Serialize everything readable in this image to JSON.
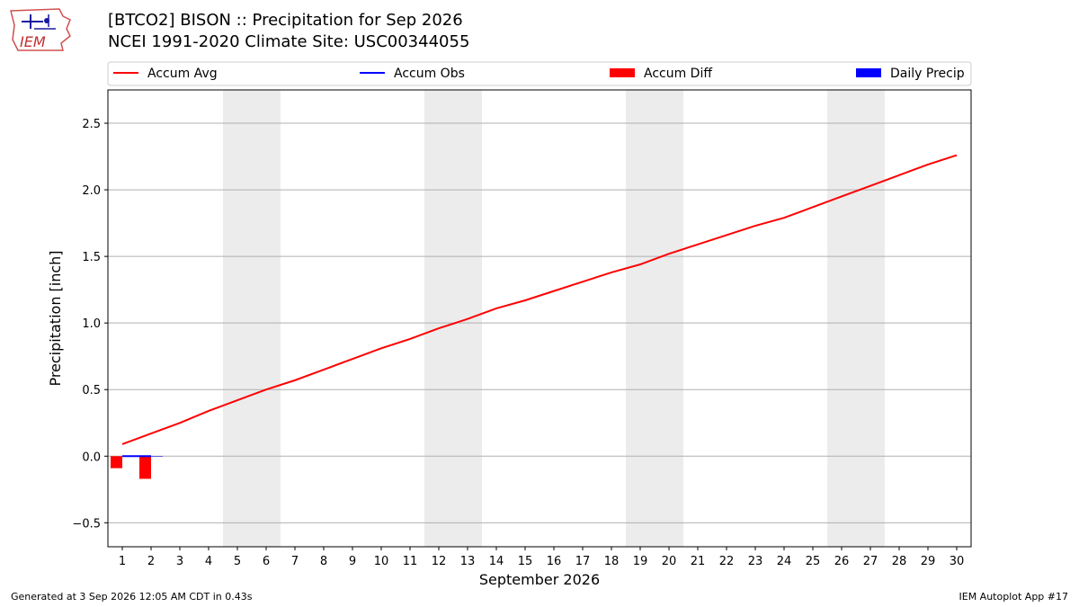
{
  "header": {
    "title_line1": "[BTCO2] BISON :: Precipitation for Sep 2026",
    "title_line2": "NCEI 1991-2020 Climate Site: USC00344055",
    "logo_text": "IEM"
  },
  "footer": {
    "generated": "Generated at 3 Sep 2026 12:05 AM CDT in 0.43s",
    "app": "IEM Autoplot App #17"
  },
  "colors": {
    "avg": "#ff0000",
    "obs": "#0000ff",
    "diff": "#ff0000",
    "daily": "#0000ff",
    "weekend": "#ececec",
    "grid": "#b0b0b0"
  },
  "chart_data": {
    "type": "line",
    "xlabel": "September 2026",
    "ylabel": "Precipitation [inch]",
    "x": [
      1,
      2,
      3,
      4,
      5,
      6,
      7,
      8,
      9,
      10,
      11,
      12,
      13,
      14,
      15,
      16,
      17,
      18,
      19,
      20,
      21,
      22,
      23,
      24,
      25,
      26,
      27,
      28,
      29,
      30
    ],
    "xlim": [
      0.5,
      30.5
    ],
    "ylim": [
      -0.68,
      2.75
    ],
    "yticks": [
      -0.5,
      0.0,
      0.5,
      1.0,
      1.5,
      2.0,
      2.5
    ],
    "ytick_labels": [
      "−0.5",
      "0.0",
      "0.5",
      "1.0",
      "1.5",
      "2.0",
      "2.5"
    ],
    "grid": "horizontal",
    "legend_position": "top",
    "shaded_weekends": [
      [
        5,
        6
      ],
      [
        12,
        13
      ],
      [
        19,
        20
      ],
      [
        26,
        27
      ]
    ],
    "series": [
      {
        "name": "Accum Avg",
        "kind": "line",
        "values": [
          0.09,
          0.17,
          0.25,
          0.34,
          0.42,
          0.5,
          0.57,
          0.65,
          0.73,
          0.81,
          0.88,
          0.96,
          1.03,
          1.11,
          1.17,
          1.24,
          1.31,
          1.38,
          1.44,
          1.52,
          1.59,
          1.66,
          1.73,
          1.79,
          1.87,
          1.95,
          2.03,
          2.11,
          2.19,
          2.26
        ]
      },
      {
        "name": "Accum Obs",
        "kind": "line",
        "x": [
          1,
          2
        ],
        "values": [
          0.0,
          0.0
        ]
      },
      {
        "name": "Accum Diff",
        "kind": "bar",
        "x": [
          1,
          2
        ],
        "values": [
          -0.09,
          -0.17
        ]
      },
      {
        "name": "Daily Precip",
        "kind": "bar",
        "x": [
          1,
          2
        ],
        "values": [
          0.0,
          0.0
        ]
      }
    ]
  }
}
